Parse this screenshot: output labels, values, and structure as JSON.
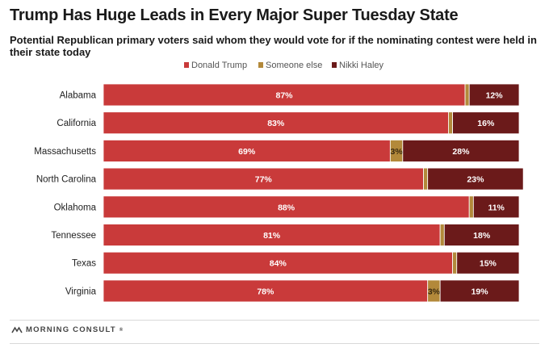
{
  "title": "Trump Has Huge Leads in Every Major Super Tuesday State",
  "subtitle": "Potential Republican primary voters said whom they would vote for if the nominating contest were held in their state today",
  "brand": "MORNING CONSULT",
  "brand_suffix": "®",
  "colors": {
    "trump": "#c93a3a",
    "someone_else": "#b3893a",
    "haley": "#6b1a1a"
  },
  "chart_data": {
    "type": "bar",
    "orientation": "horizontal",
    "stacked": true,
    "legend_position": "top",
    "categories": [
      "Alabama",
      "California",
      "Massachusetts",
      "North Carolina",
      "Oklahoma",
      "Tennessee",
      "Texas",
      "Virginia"
    ],
    "series": [
      {
        "name": "Donald Trump",
        "values": [
          87,
          83,
          69,
          77,
          88,
          81,
          84,
          78
        ],
        "labels": [
          "87%",
          "83%",
          "69%",
          "77%",
          "88%",
          "81%",
          "84%",
          "78%"
        ]
      },
      {
        "name": "Someone else",
        "values": [
          1,
          1,
          3,
          1,
          1,
          1,
          1,
          3
        ],
        "labels": [
          "",
          "",
          "3%",
          "",
          "",
          "",
          "",
          "3%"
        ]
      },
      {
        "name": "Nikki Haley",
        "values": [
          12,
          16,
          28,
          23,
          11,
          18,
          15,
          19
        ],
        "labels": [
          "12%",
          "16%",
          "28%",
          "23%",
          "11%",
          "18%",
          "15%",
          "19%"
        ]
      }
    ],
    "xlim": [
      0,
      100
    ]
  }
}
